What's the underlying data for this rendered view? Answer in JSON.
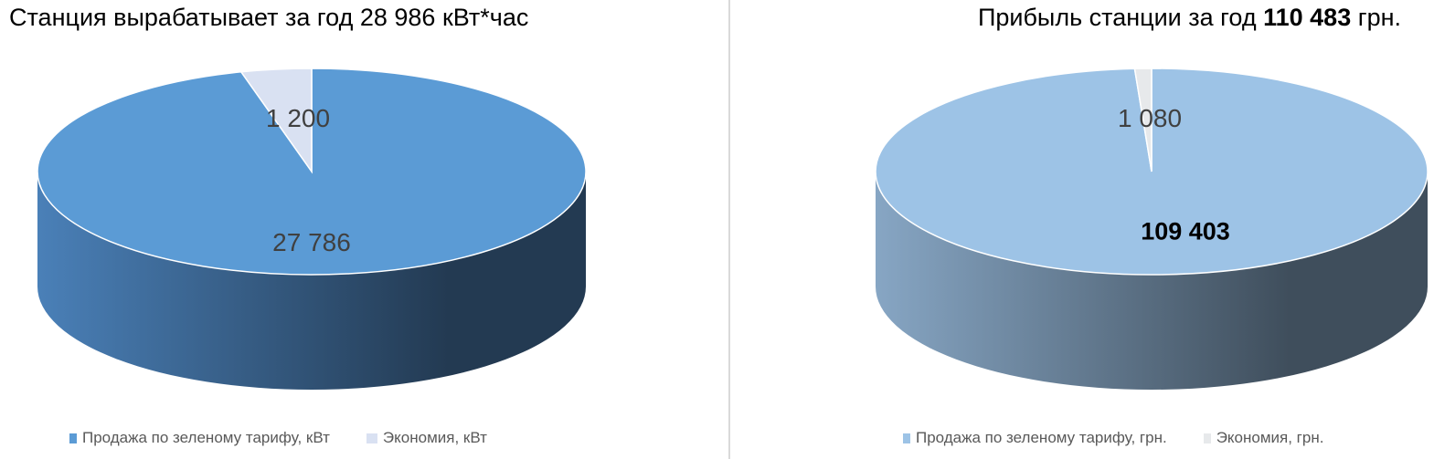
{
  "chart_data": [
    {
      "type": "pie",
      "title_prefix": "Станция вырабатывает за год ",
      "title_value": "28 986",
      "title_suffix": " кВт*час",
      "categories": [
        "Продажа по зеленому тарифу, кВт",
        "Экономия, кВт"
      ],
      "values": [
        27786,
        1200
      ],
      "data_labels": [
        "27 786",
        "1 200"
      ],
      "colors": [
        "#5b9bd5",
        "#d9e1f2"
      ],
      "side_gradient": [
        "#4a80b8",
        "#233a52"
      ],
      "legend_position": "bottom",
      "style": "3d"
    },
    {
      "type": "pie",
      "title_prefix": "Прибыль станции за год ",
      "title_value": "110 483",
      "title_suffix": " грн.",
      "categories": [
        "Продажа по зеленому тарифу, грн.",
        "Экономия, грн."
      ],
      "values": [
        109403,
        1080
      ],
      "data_labels": [
        "109 403",
        "1 080"
      ],
      "colors": [
        "#9dc3e6",
        "#e7e9eb"
      ],
      "side_gradient": [
        "#87a6c4",
        "#3f4e5c"
      ],
      "legend_position": "bottom",
      "style": "3d"
    }
  ]
}
